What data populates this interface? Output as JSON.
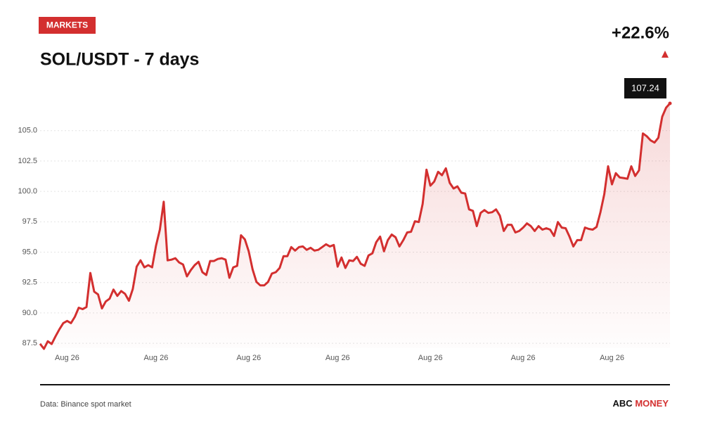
{
  "header": {
    "tag": "MARKETS",
    "change_label": "+22.6%"
  },
  "chart_data": {
    "type": "line",
    "title": "SOL/USDT - 7 days",
    "categories": [
      null,
      null,
      null,
      null,
      null,
      null,
      null,
      "Aug 26",
      null,
      null,
      null,
      null,
      null,
      null,
      null,
      null,
      null,
      null,
      null,
      null,
      null,
      null,
      null,
      null,
      null,
      null,
      null,
      null,
      null,
      null,
      "Aug 26",
      null,
      null,
      null,
      null,
      null,
      null,
      null,
      null,
      null,
      null,
      null,
      null,
      null,
      null,
      null,
      null,
      null,
      null,
      null,
      null,
      null,
      null,
      null,
      "Aug 26",
      null,
      null,
      null,
      null,
      null,
      null,
      null,
      null,
      null,
      null,
      null,
      null,
      null,
      null,
      null,
      null,
      null,
      null,
      null,
      null,
      null,
      null,
      "Aug 26",
      null,
      null,
      null,
      null,
      null,
      null,
      null,
      null,
      null,
      null,
      null,
      null,
      null,
      null,
      null,
      null,
      null,
      null,
      null,
      null,
      null,
      null,
      null,
      "Aug 26",
      null,
      null,
      null,
      null,
      null,
      null,
      null,
      null,
      null,
      null,
      null,
      null,
      null,
      null,
      null,
      null,
      null,
      null,
      null,
      null,
      null,
      null,
      null,
      "Aug 26",
      null,
      null,
      null,
      null,
      null,
      null,
      null,
      null,
      null,
      null,
      null,
      null,
      null,
      null,
      null,
      null,
      null,
      null,
      null,
      null,
      null,
      null,
      "Aug 26",
      null,
      null,
      null,
      null,
      null,
      null,
      null,
      null,
      null,
      null,
      null,
      null,
      null,
      null,
      null
    ],
    "series": [
      {
        "name": "SOL/USDT",
        "color": "#d32f2f",
        "values": [
          87.46,
          87.04,
          87.67,
          87.44,
          88.07,
          88.65,
          89.16,
          89.34,
          89.16,
          89.68,
          90.43,
          90.31,
          90.48,
          93.29,
          91.75,
          91.52,
          90.37,
          90.94,
          91.17,
          91.92,
          91.4,
          91.8,
          91.57,
          91.0,
          91.97,
          93.81,
          94.33,
          93.75,
          93.93,
          93.75,
          95.53,
          96.85,
          99.15,
          94.33,
          94.38,
          94.5,
          94.15,
          93.98,
          93.01,
          93.52,
          93.93,
          94.21,
          93.35,
          93.12,
          94.27,
          94.27,
          94.44,
          94.5,
          94.38,
          92.89,
          93.75,
          93.87,
          96.39,
          96.05,
          95.07,
          93.58,
          92.55,
          92.26,
          92.26,
          92.55,
          93.24,
          93.35,
          93.7,
          94.67,
          94.67,
          95.42,
          95.13,
          95.42,
          95.47,
          95.19,
          95.36,
          95.13,
          95.19,
          95.42,
          95.65,
          95.47,
          95.59,
          93.81,
          94.56,
          93.7,
          94.33,
          94.27,
          94.61,
          94.04,
          93.87,
          94.73,
          94.9,
          95.82,
          96.28,
          95.07,
          95.99,
          96.45,
          96.22,
          95.47,
          95.99,
          96.62,
          96.68,
          97.54,
          97.48,
          98.97,
          101.79,
          100.47,
          100.81,
          101.61,
          101.33,
          101.9,
          100.7,
          100.24,
          100.41,
          99.89,
          99.83,
          98.52,
          98.4,
          97.14,
          98.23,
          98.46,
          98.23,
          98.29,
          98.52,
          98.0,
          96.74,
          97.25,
          97.25,
          96.62,
          96.74,
          97.02,
          97.37,
          97.14,
          96.74,
          97.14,
          96.85,
          96.97,
          96.85,
          96.33,
          97.48,
          97.02,
          96.97,
          96.28,
          95.47,
          95.99,
          95.99,
          97.02,
          96.91,
          96.85,
          97.08,
          98.29,
          99.78,
          102.07,
          100.58,
          101.5,
          101.15,
          101.1,
          101.04,
          102.07,
          101.27,
          101.73,
          104.77,
          104.54,
          104.2,
          104.02,
          104.42,
          106.15,
          106.89,
          107.24
        ]
      }
    ],
    "ylim": [
      87.1,
      107.3
    ],
    "yticks": [
      {
        "value": 87.5,
        "label": "87.5"
      },
      {
        "value": 90,
        "label": "90.0"
      },
      {
        "value": 92.5,
        "label": "92.5"
      },
      {
        "value": 95,
        "label": "95.0"
      },
      {
        "value": 97.5,
        "label": "97.5"
      },
      {
        "value": 100,
        "label": "100.0"
      },
      {
        "value": 102.5,
        "label": "102.5"
      },
      {
        "value": 105,
        "label": "105.0"
      }
    ],
    "grid": true
  },
  "footer": {
    "source": "Data: Binance spot market",
    "brand": {
      "first": "ABC",
      "second": "MONEY"
    }
  }
}
